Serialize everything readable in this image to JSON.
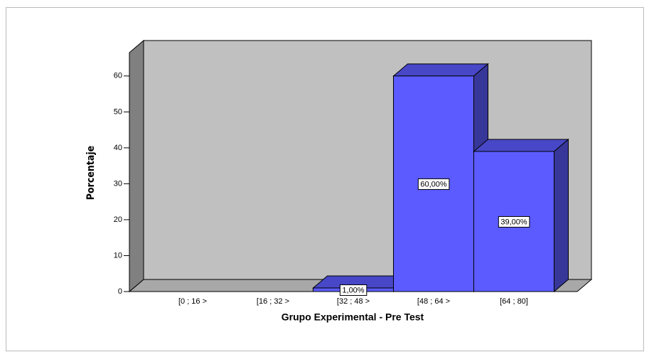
{
  "chart_data": {
    "type": "bar3d",
    "categories": [
      "[0 ; 16 >",
      "[16 ; 32 >",
      "[32 ; 48 >",
      "[48 ; 64 >",
      "[64 ; 80]"
    ],
    "values": [
      0,
      0,
      1,
      60,
      39
    ],
    "value_labels": [
      null,
      null,
      "1,00%",
      "60,00%",
      "39,00%"
    ],
    "color": "#5b5bff",
    "xlabel": "Grupo Experimental - Pre Test",
    "ylabel": "Porcentaje",
    "ylim": [
      0,
      66.5
    ],
    "yticks": [
      0,
      10,
      20,
      30,
      40,
      50,
      60
    ]
  }
}
